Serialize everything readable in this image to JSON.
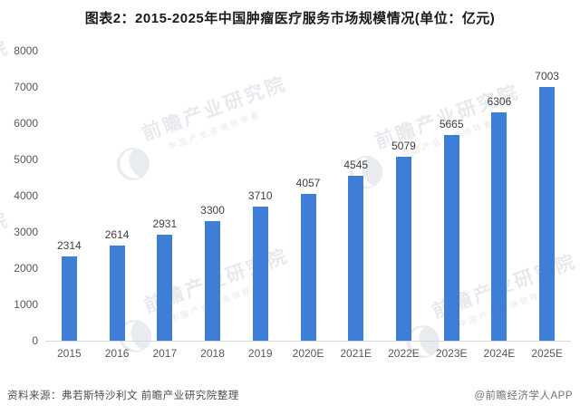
{
  "title": "图表2：2015-2025年中国肿瘤医疗服务市场规模情况(单位：亿元)",
  "chart_data": {
    "type": "bar",
    "title": "2015-2025年中国肿瘤医疗服务市场规模情况",
    "unit": "亿元",
    "categories": [
      "2015",
      "2016",
      "2017",
      "2018",
      "2019",
      "2020E",
      "2021E",
      "2022E",
      "2023E",
      "2024E",
      "2025E"
    ],
    "values": [
      2314,
      2614,
      2931,
      3300,
      3710,
      4057,
      4545,
      5079,
      5665,
      6306,
      7003
    ],
    "xlabel": "",
    "ylabel": "",
    "ylim": [
      0,
      8000
    ],
    "yticks": [
      0,
      1000,
      2000,
      3000,
      4000,
      5000,
      6000,
      7000,
      8000
    ],
    "grid": false,
    "legend": "none",
    "bar_color": "#3e7ed7",
    "data_labels": true
  },
  "watermark": {
    "brand": "前瞻产业研究院",
    "tagline": "中国产业咨询领导者"
  },
  "footer": {
    "source": "资料来源：弗若斯特沙利文 前瞻产业研究院整理",
    "credit": "@前瞻经济学人APP"
  }
}
